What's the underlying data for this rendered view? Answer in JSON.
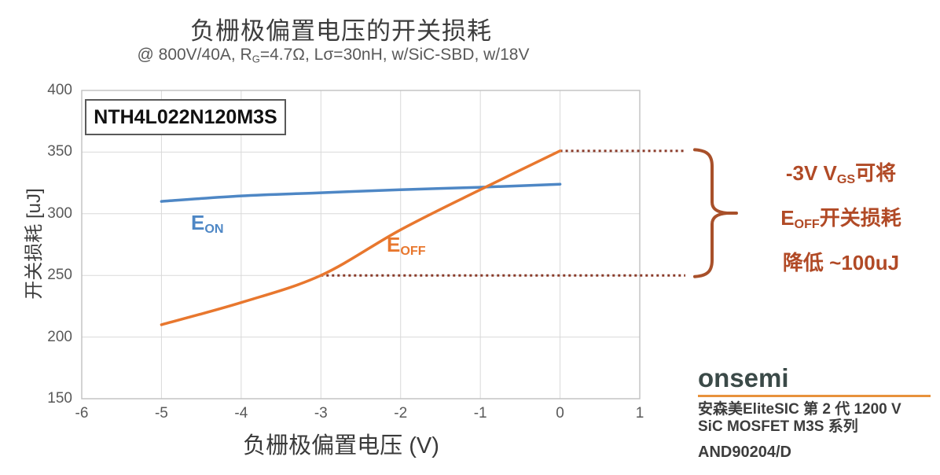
{
  "title": "负栅极偏置电压的开关损耗",
  "subtitle_segments": [
    {
      "t": "@ 800V/40A, R"
    },
    {
      "s": "G"
    },
    {
      "t": "=4.7Ω, Lσ=30nH, w/SiC-SBD, w/18V"
    }
  ],
  "device_label": "NTH4L022N120M3S",
  "series_labels": {
    "eon": [
      {
        "t": "E"
      },
      {
        "s": "ON"
      }
    ],
    "eoff": [
      {
        "t": "E"
      },
      {
        "s": "OFF"
      }
    ]
  },
  "annotation": {
    "lines": [
      [
        {
          "t": "-3V V"
        },
        {
          "s": "GS"
        },
        {
          "t": "可将"
        }
      ],
      [
        {
          "t": "E"
        },
        {
          "s": "OFF"
        },
        {
          "t": "开关损耗"
        }
      ],
      [
        {
          "t": "降低 ~100uJ"
        }
      ]
    ],
    "text_color": "#b14a26",
    "brace_color": "#a8502a",
    "dotted_line_color": "#8a3b2a"
  },
  "footer": {
    "logo": "onsemi",
    "logo_color": "#3b4a48",
    "underline_color": "#e8923c",
    "line1": "安森美EliteSIC 第 2 代 1200 V",
    "line2": "SiC MOSFET M3S 系列",
    "doc_id": "AND90204/D"
  },
  "chart_data": {
    "type": "line",
    "title": "负栅极偏置电压的开关损耗",
    "subtitle": "@ 800V/40A, RG=4.7Ω, Lσ=30nH, w/SiC-SBD, w/18V",
    "xlabel": "负栅极偏置电压 (V)",
    "ylabel": "开关损耗 [uJ]",
    "xlim": [
      -6,
      1
    ],
    "ylim": [
      150,
      400
    ],
    "xticks": [
      -6,
      -5,
      -4,
      -3,
      -2,
      -1,
      0,
      1
    ],
    "yticks": [
      150,
      200,
      250,
      300,
      350,
      400
    ],
    "grid": true,
    "grid_color": "#d9d9d9",
    "border_color": "#c0c0c0",
    "series": [
      {
        "name": "EON",
        "color": "#4e87c5",
        "x": [
          -5,
          -4,
          -3,
          -2,
          -1,
          0
        ],
        "values": [
          310,
          314.5,
          317,
          319.5,
          321.5,
          324
        ]
      },
      {
        "name": "EOFF",
        "color": "#e8772e",
        "x": [
          -5,
          -4,
          -3,
          -2,
          -1,
          0
        ],
        "values": [
          210,
          228,
          250,
          287,
          319.5,
          351
        ]
      }
    ],
    "reference_dotted_lines": [
      {
        "y": 351,
        "x_from": 0,
        "note": "EOFF at 0V extended to brace"
      },
      {
        "y": 250,
        "x_from": -3,
        "note": "EOFF at -3V extended to brace"
      }
    ]
  }
}
